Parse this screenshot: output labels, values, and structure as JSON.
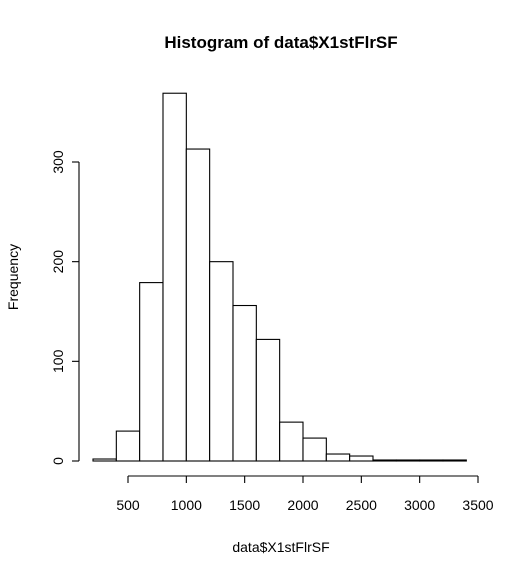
{
  "chart_data": {
    "type": "bar",
    "title": "Histogram of data$X1stFlrSF",
    "xlabel": "data$X1stFlrSF",
    "ylabel": "Frequency",
    "bin_edges": [
      200,
      400,
      600,
      800,
      1000,
      1200,
      1400,
      1600,
      1800,
      2000,
      2200,
      2400,
      2600,
      2800,
      3000,
      3200,
      3400
    ],
    "values": [
      2,
      30,
      179,
      369,
      313,
      200,
      156,
      122,
      39,
      23,
      7,
      5,
      1,
      1,
      1,
      1
    ],
    "xlim": [
      200,
      3500
    ],
    "ylim": [
      0,
      369
    ],
    "x_ticks": [
      500,
      1000,
      1500,
      2000,
      2500,
      3000,
      3500
    ],
    "x_tick_labels": [
      "500",
      "1000",
      "1500",
      "2000",
      "2500",
      "3000",
      "3500"
    ],
    "y_ticks": [
      0,
      100,
      200,
      300
    ],
    "y_tick_labels": [
      "0",
      "100",
      "200",
      "300"
    ],
    "grid": false,
    "colors": {
      "bar_fill": "#ffffff",
      "bar_stroke": "#000000"
    }
  }
}
